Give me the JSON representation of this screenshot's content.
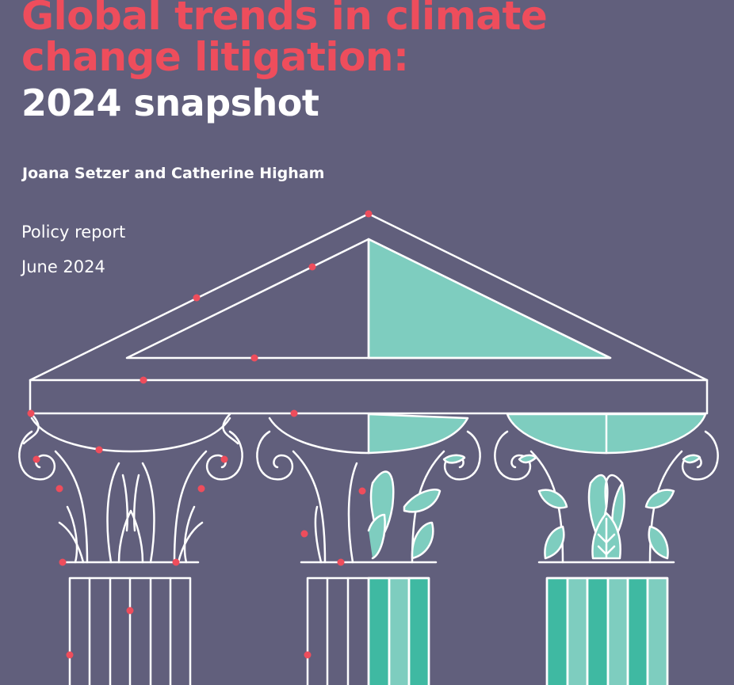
{
  "report": {
    "title_line1": "Global trends in climate",
    "title_line2": "change litigation:",
    "subtitle": "2024 snapshot",
    "authors": "Joana Setzer and Catherine Higham",
    "type": "Policy report",
    "date": "June 2024"
  },
  "colors": {
    "background": "#615f7c",
    "accent_red": "#ee4d5c",
    "teal_light": "#7ecdbf",
    "teal_dark": "#3fb9a2",
    "line": "#ffffff"
  },
  "illustration": {
    "description_icon": "greek-temple-pediment-with-columns-icon"
  }
}
